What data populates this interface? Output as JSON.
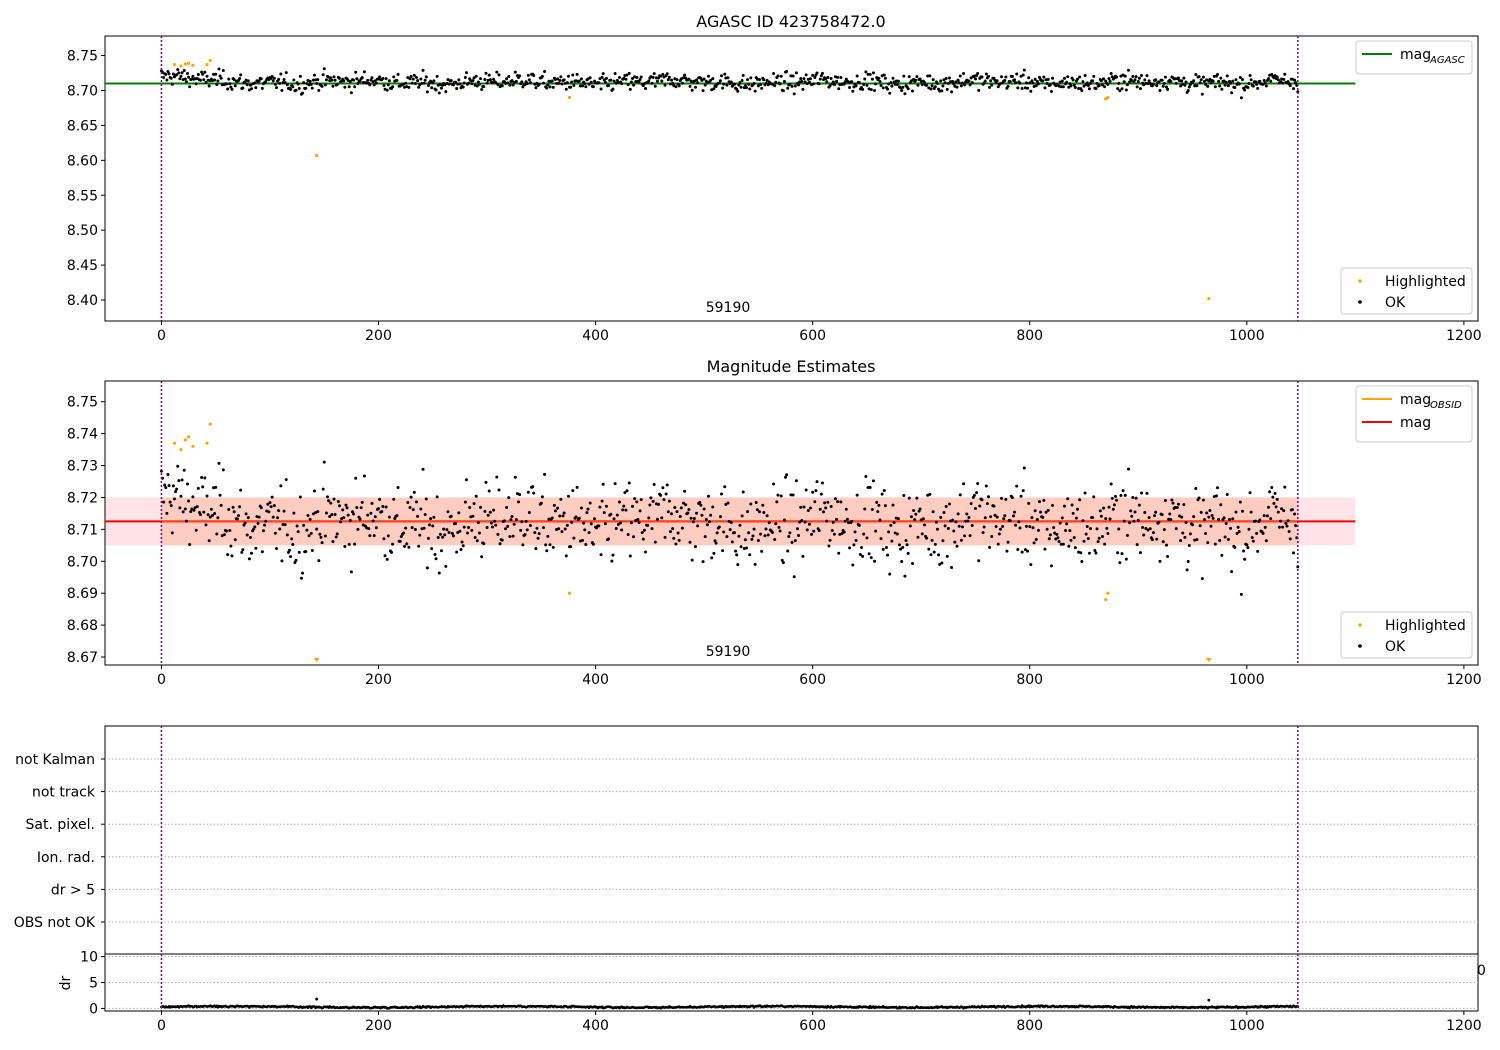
{
  "chart_data": [
    {
      "type": "scatter",
      "title": "AGASC ID 423758472.0",
      "xlabel": "",
      "ylabel": "",
      "xlim": [
        -52,
        1213
      ],
      "ylim": [
        8.37,
        8.778
      ],
      "xticks": [
        0,
        200,
        400,
        600,
        800,
        1000,
        1200
      ],
      "yticks": [
        8.4,
        8.45,
        8.5,
        8.55,
        8.6,
        8.65,
        8.7,
        8.75
      ],
      "ytick_labels": [
        "8.40",
        "8.45",
        "8.50",
        "8.55",
        "8.60",
        "8.65",
        "8.70",
        "8.75"
      ],
      "annotation": {
        "text": "59190",
        "x": 522,
        "y_frac": 0.05
      },
      "vlines": [
        0,
        1047
      ],
      "hline": {
        "name": "mag_AGASC",
        "y": 8.71,
        "x_range": [
          -52,
          1100
        ],
        "color": "#008000"
      },
      "ok_series": {
        "name": "OK",
        "color": "#000000",
        "n": 1048,
        "x_range": [
          0,
          1047
        ],
        "mean": 8.712,
        "spread": 0.0062
      },
      "highlighted": {
        "name": "Highlighted",
        "color": "#ffa500",
        "x": [
          12,
          18,
          22,
          25,
          29,
          42,
          45,
          143,
          376,
          870,
          872,
          965
        ],
        "y": [
          8.737,
          8.735,
          8.738,
          8.739,
          8.736,
          8.737,
          8.743,
          8.607,
          8.69,
          8.688,
          8.69,
          8.402
        ]
      },
      "legend_lines": [
        {
          "label": "mag",
          "sub": "AGASC",
          "color": "#008000",
          "placement": "upper right"
        }
      ],
      "legend_points": [
        {
          "label": "Highlighted",
          "color": "#ffa500",
          "placement": "lower right"
        },
        {
          "label": "OK",
          "color": "#000000",
          "placement": "lower right"
        }
      ]
    },
    {
      "type": "scatter",
      "title": "Magnitude Estimates",
      "xlabel": "",
      "ylabel": "",
      "xlim": [
        -52,
        1213
      ],
      "ylim": [
        8.6675,
        8.7565
      ],
      "xticks": [
        0,
        200,
        400,
        600,
        800,
        1000,
        1200
      ],
      "yticks": [
        8.67,
        8.68,
        8.69,
        8.7,
        8.71,
        8.72,
        8.73,
        8.74,
        8.75
      ],
      "ytick_labels": [
        "8.67",
        "8.68",
        "8.69",
        "8.70",
        "8.71",
        "8.72",
        "8.73",
        "8.74",
        "8.75"
      ],
      "annotation": {
        "text": "59190",
        "x": 522,
        "y_frac": 0.05
      },
      "vlines": [
        0,
        1047
      ],
      "mag_line": {
        "name": "mag",
        "y": 8.7125,
        "x_range": [
          -52,
          1100
        ],
        "color": "#ff0000"
      },
      "mag_band": {
        "y_low": 8.705,
        "y_high": 8.72,
        "x_range": [
          -52,
          1100
        ],
        "color": "#ffc0cb"
      },
      "obsid_band": {
        "y_low": 8.705,
        "y_high": 8.72,
        "x_range": [
          0,
          1047
        ],
        "color": "#ffa07a"
      },
      "ok_series": {
        "name": "OK",
        "color": "#000000",
        "n": 1048,
        "x_range": [
          0,
          1047
        ],
        "mean": 8.712,
        "spread": 0.0062
      },
      "highlighted": {
        "name": "Highlighted",
        "color": "#ffa500",
        "x": [
          12,
          18,
          22,
          25,
          29,
          42,
          45,
          376,
          870,
          872
        ],
        "y": [
          8.737,
          8.735,
          8.738,
          8.739,
          8.736,
          8.737,
          8.743,
          8.69,
          8.688,
          8.69
        ]
      },
      "offscale_markers": {
        "color": "#ffa500",
        "x": [
          143,
          965
        ]
      },
      "legend_lines": [
        {
          "label": "mag",
          "sub": "OBSID",
          "color": "#ffa500",
          "placement": "upper right"
        },
        {
          "label": "mag",
          "sub": "",
          "color": "#ff0000",
          "placement": "upper right"
        }
      ],
      "legend_points": [
        {
          "label": "Highlighted",
          "color": "#ffa500",
          "placement": "lower right"
        },
        {
          "label": "OK",
          "color": "#000000",
          "placement": "lower right"
        }
      ]
    },
    {
      "type": "scatter",
      "title": "",
      "xlabel": "",
      "ylabel": "",
      "xlim": [
        -52,
        1213
      ],
      "flag_labels": [
        "not Kalman",
        "not track",
        "Sat. pixel.",
        "Ion. rad.",
        "dr > 5",
        "OBS not OK"
      ],
      "vlines": [
        0,
        1047
      ],
      "grid": "horizontal dotted"
    },
    {
      "type": "scatter",
      "title": "",
      "xlabel": "",
      "ylabel": "dr",
      "xlim": [
        -52,
        1213
      ],
      "ylim": [
        -0.5,
        10.5
      ],
      "xticks": [
        0,
        200,
        400,
        600,
        800,
        1000,
        1200
      ],
      "yticks": [
        0,
        5,
        10
      ],
      "ytick_labels": [
        "0",
        "5",
        "10"
      ],
      "clipped_label": "0",
      "vlines": [
        0,
        1047
      ],
      "dr_series": {
        "color": "#000000",
        "n": 1048,
        "x_range": [
          0,
          1047
        ],
        "base": 0.3,
        "spread": 0.15
      },
      "dr_outliers": {
        "x": [
          143,
          965
        ],
        "y": [
          1.8,
          1.6
        ]
      }
    }
  ]
}
